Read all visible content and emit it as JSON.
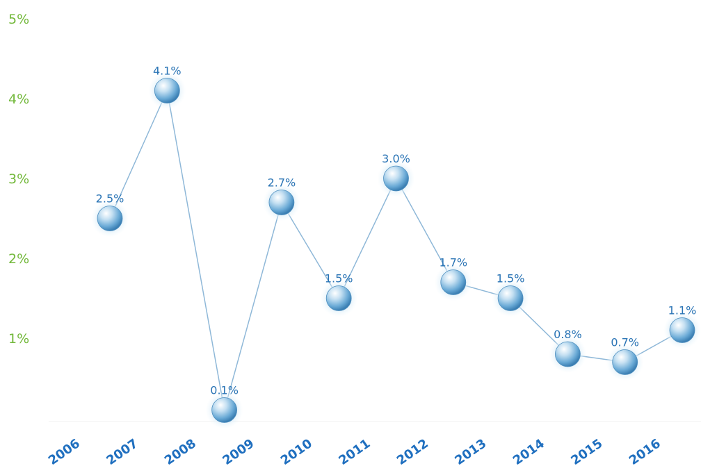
{
  "chart_data": {
    "type": "line",
    "title": "",
    "xlabel": "",
    "ylabel": "",
    "x": [
      "2006",
      "2007",
      "2008",
      "2009",
      "2010",
      "2011",
      "2012",
      "2013",
      "2014",
      "2015",
      "2016"
    ],
    "point_labels": [
      "2.5%",
      "4.1%",
      "0.1%",
      "2.7%",
      "1.5%",
      "3.0%",
      "1.7%",
      "1.5%",
      "0.8%",
      "0.7%",
      "1.1%"
    ],
    "series": [
      {
        "values": [
          2.5,
          4.1,
          0.1,
          2.7,
          1.5,
          3.0,
          1.7,
          1.5,
          0.8,
          0.7,
          1.1
        ]
      }
    ],
    "yticks": [
      "1%",
      "2%",
      "3%",
      "4%",
      "5%"
    ],
    "ylim": [
      0,
      5
    ],
    "grid": false,
    "legend": "none",
    "colors": {
      "line": "#8fb8d8",
      "marker": "#5b9fd0",
      "ytick": "#72b83a",
      "xtick": "#1f6fbf",
      "point_label": "#2a74b5"
    }
  }
}
